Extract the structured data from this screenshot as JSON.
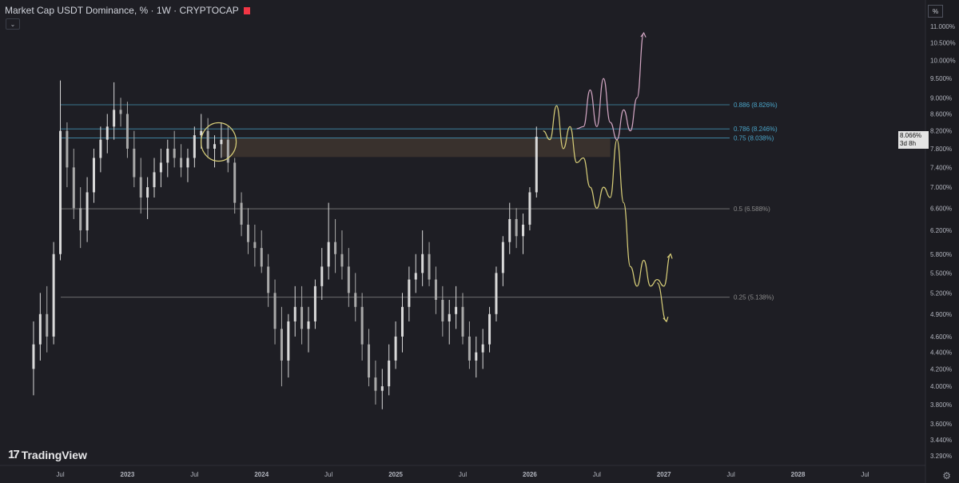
{
  "header": {
    "symbol_title": "Market Cap USDT Dominance, % · 1W · CRYPTOCAP",
    "collapse_icon": "chevron-down-icon",
    "flag_color": "#f23645"
  },
  "scale_mode_label": "%",
  "settings_icon": "gear-icon",
  "brand": {
    "mark": "17",
    "name": "TradingView"
  },
  "last_price": {
    "value": "8.066%",
    "countdown": "3d 8h"
  },
  "colors": {
    "background": "#1e1e24",
    "candle_up": "#d9d9d9",
    "candle_down": "#a9a9a9",
    "fib_top": "#4aa4c8",
    "fib_mid": "#8a8a8a",
    "zone": "#5c4a3a",
    "path_yellow": "#d9cf79",
    "path_pink": "#d4a7c4"
  },
  "chart_data": {
    "type": "candlestick",
    "symbol": "Market Cap USDT Dominance",
    "interval": "1W",
    "y_scale": "log",
    "y_ticks": [
      "11.000%",
      "10.500%",
      "10.000%",
      "9.500%",
      "9.000%",
      "8.600%",
      "8.200%",
      "7.800%",
      "7.400%",
      "7.000%",
      "6.600%",
      "6.200%",
      "5.800%",
      "5.500%",
      "5.200%",
      "4.900%",
      "4.600%",
      "4.400%",
      "4.200%",
      "4.000%",
      "3.800%",
      "3.600%",
      "3.440%",
      "3.290%"
    ],
    "x_ticks": [
      "Jul",
      "2023",
      "Jul",
      "2024",
      "Jul",
      "2025",
      "Jul",
      "2026",
      "Jul",
      "2027",
      "Jul",
      "2028",
      "Jul"
    ],
    "fib_levels": [
      {
        "label": "0.886 (8.826%)",
        "value": 8.826,
        "color": "#4aa4c8"
      },
      {
        "label": "0.786 (8.246%)",
        "value": 8.246,
        "color": "#4aa4c8"
      },
      {
        "label": "0.75 (8.038%)",
        "value": 8.038,
        "color": "#4aa4c8"
      },
      {
        "label": "0.5 (6.588%)",
        "value": 6.588,
        "color": "#8a8a8a"
      },
      {
        "label": "0.25 (5.138%)",
        "value": 5.138,
        "color": "#8a8a8a"
      }
    ],
    "resistance_zone": {
      "top": 8.03,
      "bottom": 7.62,
      "from": 2023.7,
      "to": 2026.6
    },
    "last_value": 8.066,
    "grid": false,
    "candles": [
      [
        2022.3,
        4.2,
        4.8,
        3.9,
        4.5
      ],
      [
        2022.35,
        4.5,
        5.2,
        4.3,
        4.9
      ],
      [
        2022.4,
        4.9,
        5.3,
        4.4,
        4.6
      ],
      [
        2022.45,
        4.6,
        6.0,
        4.5,
        5.8
      ],
      [
        2022.5,
        5.8,
        9.45,
        5.7,
        8.2
      ],
      [
        2022.55,
        8.2,
        8.4,
        7.0,
        7.4
      ],
      [
        2022.6,
        7.4,
        7.8,
        6.4,
        6.6
      ],
      [
        2022.65,
        6.6,
        7.0,
        5.9,
        6.2
      ],
      [
        2022.7,
        6.2,
        7.2,
        6.0,
        6.9
      ],
      [
        2022.75,
        6.9,
        7.8,
        6.7,
        7.6
      ],
      [
        2022.8,
        7.6,
        8.3,
        7.3,
        8.0
      ],
      [
        2022.85,
        8.0,
        8.6,
        7.7,
        8.3
      ],
      [
        2022.9,
        8.3,
        9.4,
        8.0,
        8.7
      ],
      [
        2022.95,
        8.7,
        9.0,
        8.3,
        8.6
      ],
      [
        2023.0,
        8.6,
        8.9,
        7.6,
        7.8
      ],
      [
        2023.05,
        7.8,
        8.2,
        7.0,
        7.2
      ],
      [
        2023.1,
        7.2,
        7.6,
        6.5,
        6.8
      ],
      [
        2023.15,
        6.8,
        7.2,
        6.4,
        7.0
      ],
      [
        2023.2,
        7.0,
        7.6,
        6.8,
        7.3
      ],
      [
        2023.25,
        7.3,
        7.8,
        7.0,
        7.5
      ],
      [
        2023.3,
        7.5,
        8.0,
        7.2,
        7.8
      ],
      [
        2023.35,
        7.8,
        8.2,
        7.4,
        7.6
      ],
      [
        2023.4,
        7.6,
        7.9,
        7.2,
        7.4
      ],
      [
        2023.45,
        7.4,
        7.8,
        7.1,
        7.6
      ],
      [
        2023.5,
        7.6,
        8.3,
        7.4,
        8.1
      ],
      [
        2023.55,
        8.1,
        8.6,
        7.8,
        8.2
      ],
      [
        2023.6,
        8.2,
        8.5,
        7.6,
        7.8
      ],
      [
        2023.65,
        7.8,
        8.1,
        7.4,
        7.9
      ],
      [
        2023.7,
        7.9,
        8.4,
        7.6,
        8.0
      ],
      [
        2023.75,
        8.0,
        8.3,
        7.3,
        7.5
      ],
      [
        2023.8,
        7.5,
        7.6,
        6.5,
        6.7
      ],
      [
        2023.85,
        6.7,
        6.9,
        6.1,
        6.3
      ],
      [
        2023.9,
        6.3,
        6.6,
        5.8,
        6.0
      ],
      [
        2023.95,
        6.0,
        6.3,
        5.6,
        5.9
      ],
      [
        2024.0,
        5.9,
        6.2,
        5.5,
        5.6
      ],
      [
        2024.05,
        5.6,
        5.8,
        5.0,
        5.2
      ],
      [
        2024.1,
        5.2,
        5.4,
        4.5,
        4.7
      ],
      [
        2024.15,
        4.7,
        5.0,
        4.0,
        4.3
      ],
      [
        2024.2,
        4.3,
        4.9,
        4.1,
        4.8
      ],
      [
        2024.25,
        4.8,
        5.3,
        4.6,
        5.0
      ],
      [
        2024.3,
        5.0,
        5.3,
        4.5,
        4.7
      ],
      [
        2024.35,
        4.7,
        5.0,
        4.4,
        4.8
      ],
      [
        2024.4,
        4.8,
        5.4,
        4.7,
        5.3
      ],
      [
        2024.45,
        5.3,
        5.9,
        5.1,
        5.6
      ],
      [
        2024.5,
        5.6,
        6.7,
        5.4,
        6.0
      ],
      [
        2024.55,
        6.0,
        6.4,
        5.5,
        5.8
      ],
      [
        2024.6,
        5.8,
        6.2,
        5.4,
        5.6
      ],
      [
        2024.65,
        5.6,
        5.9,
        5.0,
        5.2
      ],
      [
        2024.7,
        5.2,
        5.5,
        4.8,
        5.0
      ],
      [
        2024.75,
        5.0,
        5.2,
        4.3,
        4.5
      ],
      [
        2024.8,
        4.5,
        4.7,
        4.0,
        4.1
      ],
      [
        2024.85,
        4.1,
        4.3,
        3.8,
        3.95
      ],
      [
        2024.9,
        3.95,
        4.2,
        3.75,
        4.0
      ],
      [
        2024.95,
        4.0,
        4.5,
        3.9,
        4.3
      ],
      [
        2025.0,
        4.3,
        4.8,
        4.2,
        4.6
      ],
      [
        2025.05,
        4.6,
        5.2,
        4.4,
        5.0
      ],
      [
        2025.1,
        5.0,
        5.6,
        4.8,
        5.4
      ],
      [
        2025.15,
        5.4,
        5.8,
        5.2,
        5.5
      ],
      [
        2025.2,
        5.5,
        6.2,
        5.3,
        5.8
      ],
      [
        2025.25,
        5.8,
        6.0,
        5.3,
        5.4
      ],
      [
        2025.3,
        5.4,
        5.6,
        4.9,
        5.1
      ],
      [
        2025.35,
        5.1,
        5.3,
        4.6,
        4.8
      ],
      [
        2025.4,
        4.8,
        5.1,
        4.5,
        4.9
      ],
      [
        2025.45,
        4.9,
        5.3,
        4.7,
        5.0
      ],
      [
        2025.5,
        5.0,
        5.2,
        4.5,
        4.6
      ],
      [
        2025.55,
        4.6,
        4.8,
        4.2,
        4.3
      ],
      [
        2025.6,
        4.3,
        4.6,
        4.1,
        4.4
      ],
      [
        2025.65,
        4.4,
        4.7,
        4.2,
        4.5
      ],
      [
        2025.7,
        4.5,
        5.0,
        4.4,
        4.9
      ],
      [
        2025.75,
        4.9,
        5.6,
        4.8,
        5.5
      ],
      [
        2025.8,
        5.5,
        6.1,
        5.3,
        6.0
      ],
      [
        2025.85,
        6.0,
        6.7,
        5.8,
        6.4
      ],
      [
        2025.9,
        6.4,
        6.6,
        5.9,
        6.1
      ],
      [
        2025.95,
        6.1,
        6.5,
        5.8,
        6.3
      ],
      [
        2026.0,
        6.3,
        7.0,
        6.2,
        6.9
      ],
      [
        2026.05,
        6.9,
        8.3,
        6.8,
        8.066
      ]
    ],
    "projections": [
      {
        "name": "",
        "color": "#d9cf79",
        "points": [
          [
            2026.1,
            8.2
          ],
          [
            2026.15,
            8.0
          ],
          [
            2026.2,
            8.8
          ],
          [
            2026.25,
            7.8
          ],
          [
            2026.3,
            8.3
          ],
          [
            2026.35,
            7.5
          ],
          [
            2026.4,
            7.6
          ],
          [
            2026.45,
            7.0
          ],
          [
            2026.5,
            6.6
          ],
          [
            2026.55,
            7.0
          ],
          [
            2026.6,
            6.8
          ],
          [
            2026.65,
            8.0
          ],
          [
            2026.7,
            6.7
          ],
          [
            2026.75,
            5.6
          ],
          [
            2026.8,
            5.3
          ],
          [
            2026.85,
            5.7
          ],
          [
            2026.9,
            5.3
          ],
          [
            2026.95,
            5.4
          ],
          [
            2027.0,
            5.3
          ],
          [
            2027.05,
            5.8
          ]
        ]
      },
      {
        "name": "",
        "color": "#d9cf79",
        "points": [
          [
            2026.95,
            5.35
          ],
          [
            2027.02,
            4.8
          ]
        ]
      },
      {
        "name": "",
        "color": "#d4a7c4",
        "points": [
          [
            2026.35,
            8.25
          ],
          [
            2026.4,
            8.3
          ],
          [
            2026.45,
            9.2
          ],
          [
            2026.5,
            8.3
          ],
          [
            2026.55,
            9.5
          ],
          [
            2026.6,
            8.4
          ],
          [
            2026.65,
            8.0
          ],
          [
            2026.7,
            8.7
          ],
          [
            2026.75,
            8.2
          ],
          [
            2026.8,
            9.0
          ],
          [
            2026.85,
            10.8
          ]
        ]
      }
    ]
  }
}
